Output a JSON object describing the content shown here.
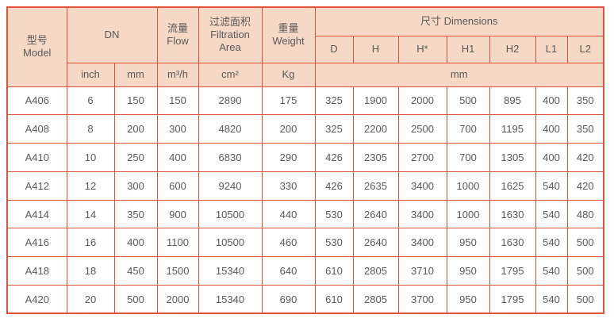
{
  "colors": {
    "header_bg": "#f5d8c6",
    "border": "#e05138",
    "text": "#595959",
    "body_bg": "#ffffff"
  },
  "table": {
    "header": {
      "model_cn": "型号",
      "model_en": "Model",
      "dn": "DN",
      "flow_cn": "流量",
      "flow_en": "Flow",
      "filtration_cn": "过滤面积",
      "filtration_en_line1": "Filtration",
      "filtration_en_line2": "Area",
      "weight_cn": "重量",
      "weight_en": "Weight",
      "dimensions": "尺寸 Dimensions",
      "dim_columns": [
        "D",
        "H",
        "H*",
        "H1",
        "H2",
        "L1",
        "L2"
      ],
      "units": {
        "inch": "inch",
        "mm": "mm",
        "flow": "m³/h",
        "area": "cm²",
        "weight": "Kg",
        "dimensions": "mm"
      }
    },
    "rows": [
      {
        "model": "A406",
        "dn_inch": "6",
        "dn_mm": "150",
        "flow": "150",
        "area": "2890",
        "weight": "175",
        "dims": [
          "325",
          "1900",
          "2000",
          "500",
          "895",
          "400",
          "350"
        ]
      },
      {
        "model": "A408",
        "dn_inch": "8",
        "dn_mm": "200",
        "flow": "300",
        "area": "4820",
        "weight": "200",
        "dims": [
          "325",
          "2200",
          "2500",
          "700",
          "1195",
          "400",
          "350"
        ]
      },
      {
        "model": "A410",
        "dn_inch": "10",
        "dn_mm": "250",
        "flow": "400",
        "area": "6830",
        "weight": "290",
        "dims": [
          "426",
          "2305",
          "2700",
          "700",
          "1305",
          "400",
          "420"
        ]
      },
      {
        "model": "A412",
        "dn_inch": "12",
        "dn_mm": "300",
        "flow": "600",
        "area": "9240",
        "weight": "330",
        "dims": [
          "426",
          "2635",
          "3400",
          "1000",
          "1625",
          "540",
          "420"
        ]
      },
      {
        "model": "A414",
        "dn_inch": "14",
        "dn_mm": "350",
        "flow": "900",
        "area": "10500",
        "weight": "440",
        "dims": [
          "530",
          "2640",
          "3400",
          "1000",
          "1630",
          "540",
          "480"
        ]
      },
      {
        "model": "A416",
        "dn_inch": "16",
        "dn_mm": "400",
        "flow": "1100",
        "area": "10500",
        "weight": "460",
        "dims": [
          "530",
          "2640",
          "3400",
          "950",
          "1630",
          "540",
          "500"
        ]
      },
      {
        "model": "A418",
        "dn_inch": "18",
        "dn_mm": "450",
        "flow": "1500",
        "area": "15340",
        "weight": "640",
        "dims": [
          "610",
          "2805",
          "3710",
          "950",
          "1795",
          "540",
          "500"
        ]
      },
      {
        "model": "A420",
        "dn_inch": "20",
        "dn_mm": "500",
        "flow": "2000",
        "area": "15340",
        "weight": "690",
        "dims": [
          "610",
          "2805",
          "3700",
          "950",
          "1795",
          "540",
          "500"
        ]
      }
    ]
  }
}
